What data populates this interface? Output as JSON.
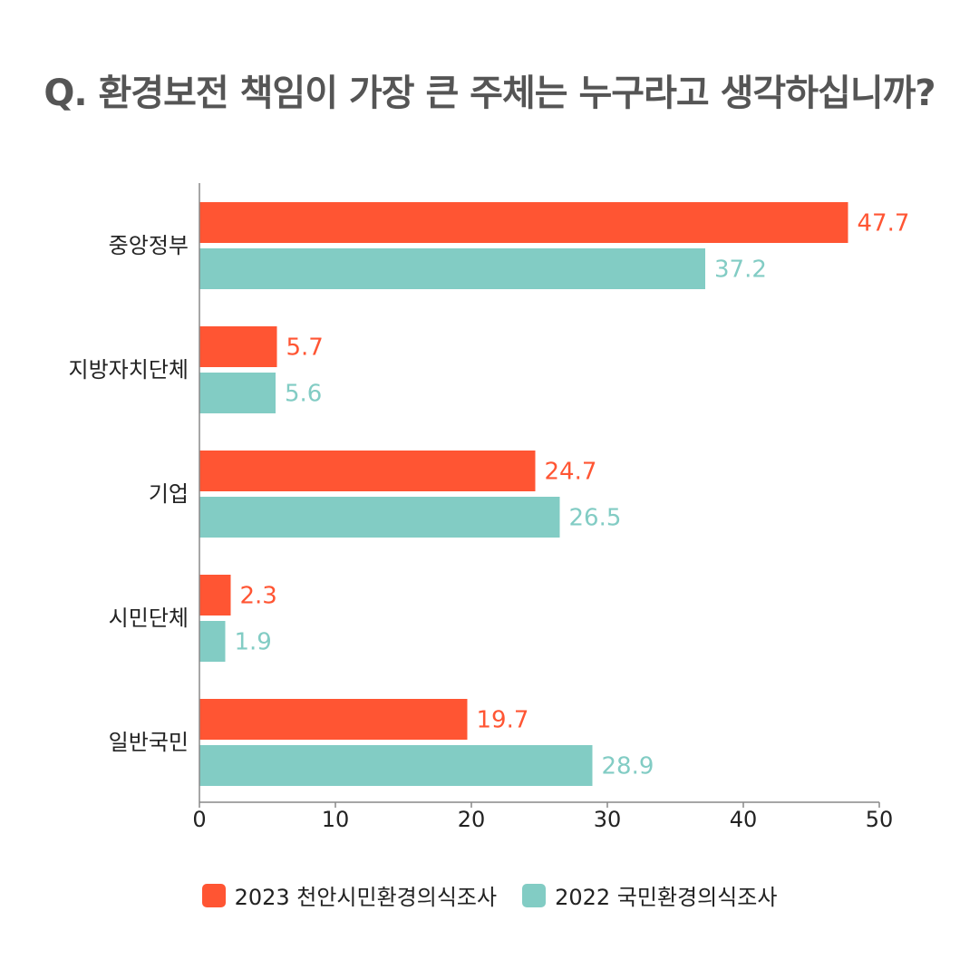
{
  "chart_data": {
    "type": "bar",
    "orientation": "horizontal",
    "title": "Q. 환경보전 책임이 가장 큰 주체는 누구라고 생각하십니까?",
    "categories": [
      "중앙정부",
      "지방자치단체",
      "기업",
      "시민단체",
      "일반국민"
    ],
    "series": [
      {
        "name": "2023 천안시민환경의식조사",
        "color": "#FF5533",
        "values": [
          47.7,
          5.7,
          24.7,
          2.3,
          19.7
        ]
      },
      {
        "name": "2022 국민환경의식조사",
        "color": "#82CCC4",
        "values": [
          37.2,
          5.6,
          26.5,
          1.9,
          28.9
        ]
      }
    ],
    "xlim": [
      0,
      50
    ],
    "xticks": [
      0,
      10,
      20,
      30,
      40,
      50
    ],
    "grid": false,
    "legend_position": "bottom-center"
  }
}
